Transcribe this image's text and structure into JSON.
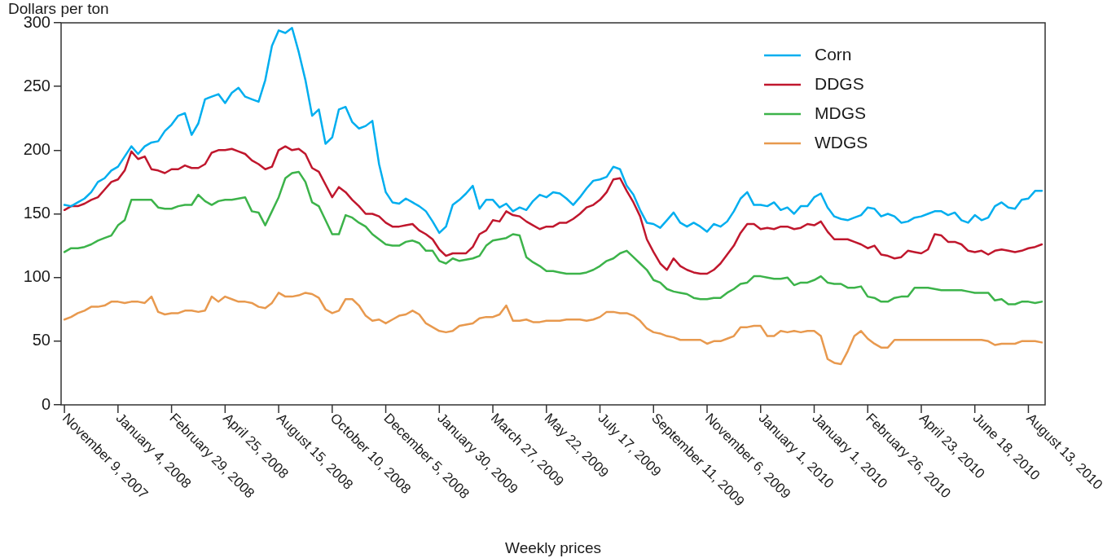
{
  "chart_data": {
    "type": "line",
    "ylabel": "Dollars per ton",
    "xlabel": "Weekly prices",
    "categories": [
      "November 9, 2007",
      null,
      null,
      null,
      null,
      null,
      null,
      null,
      "January 4, 2008",
      null,
      null,
      null,
      null,
      null,
      null,
      null,
      "February 29, 2008",
      null,
      null,
      null,
      null,
      null,
      null,
      null,
      "April 25, 2008",
      null,
      null,
      null,
      null,
      null,
      null,
      null,
      "August 15, 2008",
      null,
      null,
      null,
      null,
      null,
      null,
      null,
      "October 10, 2008",
      null,
      null,
      null,
      null,
      null,
      null,
      null,
      "December 5, 2008",
      null,
      null,
      null,
      null,
      null,
      null,
      null,
      "January 30, 2009",
      null,
      null,
      null,
      null,
      null,
      null,
      null,
      "March 27, 2009",
      null,
      null,
      null,
      null,
      null,
      null,
      null,
      "May 22, 2009",
      null,
      null,
      null,
      null,
      null,
      null,
      null,
      "July 17, 2009",
      null,
      null,
      null,
      null,
      null,
      null,
      null,
      "September 11, 2009",
      null,
      null,
      null,
      null,
      null,
      null,
      null,
      "November 6, 2009",
      null,
      null,
      null,
      null,
      null,
      null,
      null,
      "January 1, 2010",
      null,
      null,
      null,
      null,
      null,
      null,
      null,
      "January 1, 2010",
      null,
      null,
      null,
      null,
      null,
      null,
      null,
      "February 26, 2010",
      null,
      null,
      null,
      null,
      null,
      null,
      null,
      "April 23, 2010",
      null,
      null,
      null,
      null,
      null,
      null,
      null,
      "June 18, 2010",
      null,
      null,
      null,
      null,
      null,
      null,
      null,
      "August 13, 2010",
      null,
      null
    ],
    "series": [
      {
        "name": "Corn",
        "color": "#00aeef",
        "values": [
          157,
          156,
          159,
          162,
          167,
          175,
          178,
          184,
          187,
          195,
          203,
          197,
          203,
          206,
          207,
          215,
          220,
          227,
          229,
          212,
          221,
          240,
          242,
          244,
          237,
          245,
          249,
          242,
          240,
          238,
          255,
          282,
          294,
          292,
          296,
          277,
          255,
          227,
          232,
          205,
          210,
          232,
          234,
          222,
          217,
          219,
          223,
          189,
          167,
          159,
          158,
          162,
          159,
          156,
          152,
          144,
          135,
          140,
          157,
          161,
          166,
          172,
          154,
          161,
          161,
          155,
          158,
          152,
          155,
          153,
          160,
          165,
          163,
          167,
          166,
          162,
          157,
          163,
          170,
          176,
          177,
          179,
          187,
          185,
          172,
          165,
          153,
          143,
          142,
          139,
          145,
          151,
          143,
          140,
          143,
          140,
          136,
          142,
          140,
          144,
          152,
          162,
          167,
          157,
          157,
          156,
          159,
          153,
          155,
          150,
          156,
          156,
          163,
          166,
          155,
          148,
          146,
          145,
          147,
          149,
          155,
          154,
          148,
          150,
          148,
          143,
          144,
          147,
          148,
          150,
          152,
          152,
          149,
          151,
          145,
          143,
          149,
          145,
          147,
          156,
          159,
          155,
          154,
          161,
          162,
          168,
          168
        ]
      },
      {
        "name": "DDGS",
        "color": "#c0172d",
        "values": [
          153,
          156,
          156,
          158,
          161,
          163,
          169,
          175,
          177,
          184,
          199,
          193,
          195,
          185,
          184,
          182,
          185,
          185,
          188,
          186,
          186,
          189,
          198,
          200,
          200,
          201,
          199,
          197,
          192,
          189,
          185,
          187,
          200,
          203,
          200,
          201,
          197,
          186,
          183,
          173,
          163,
          171,
          167,
          161,
          156,
          150,
          150,
          148,
          143,
          140,
          140,
          141,
          142,
          137,
          134,
          130,
          122,
          117,
          119,
          119,
          119,
          124,
          134,
          137,
          145,
          144,
          152,
          149,
          148,
          144,
          141,
          138,
          140,
          140,
          143,
          143,
          146,
          150,
          155,
          157,
          161,
          167,
          177,
          178,
          168,
          159,
          148,
          130,
          120,
          111,
          106,
          115,
          109,
          106,
          104,
          103,
          103,
          106,
          111,
          118,
          125,
          135,
          142,
          142,
          138,
          139,
          138,
          140,
          140,
          138,
          139,
          142,
          141,
          144,
          136,
          130,
          130,
          130,
          128,
          126,
          123,
          125,
          118,
          117,
          115,
          116,
          121,
          120,
          119,
          122,
          134,
          133,
          128,
          128,
          126,
          121,
          120,
          121,
          118,
          121,
          122,
          121,
          120,
          121,
          123,
          124,
          126
        ]
      },
      {
        "name": "MDGS",
        "color": "#3cb34a",
        "values": [
          120,
          123,
          123,
          124,
          126,
          129,
          131,
          133,
          141,
          145,
          161,
          161,
          161,
          161,
          155,
          154,
          154,
          156,
          157,
          157,
          165,
          160,
          157,
          160,
          161,
          161,
          162,
          163,
          152,
          151,
          141,
          152,
          163,
          178,
          182,
          183,
          175,
          159,
          156,
          145,
          134,
          134,
          149,
          147,
          143,
          140,
          134,
          130,
          126,
          125,
          125,
          128,
          129,
          127,
          121,
          121,
          113,
          111,
          115,
          113,
          114,
          115,
          117,
          125,
          129,
          130,
          131,
          134,
          133,
          116,
          112,
          109,
          105,
          105,
          104,
          103,
          103,
          103,
          104,
          106,
          109,
          113,
          115,
          119,
          121,
          116,
          111,
          106,
          98,
          96,
          91,
          89,
          88,
          87,
          84,
          83,
          83,
          84,
          84,
          88,
          91,
          95,
          96,
          101,
          101,
          100,
          99,
          99,
          100,
          94,
          96,
          96,
          98,
          101,
          96,
          95,
          95,
          92,
          92,
          93,
          85,
          84,
          81,
          81,
          84,
          85,
          85,
          92,
          92,
          92,
          91,
          90,
          90,
          90,
          90,
          89,
          88,
          88,
          88,
          82,
          83,
          79,
          79,
          81,
          81,
          80,
          81
        ]
      },
      {
        "name": "WDGS",
        "color": "#e8994e",
        "values": [
          67,
          69,
          72,
          74,
          77,
          77,
          78,
          81,
          81,
          80,
          81,
          81,
          80,
          85,
          73,
          71,
          72,
          72,
          74,
          74,
          73,
          74,
          85,
          81,
          85,
          83,
          81,
          81,
          80,
          77,
          76,
          80,
          88,
          85,
          85,
          86,
          88,
          87,
          84,
          75,
          72,
          74,
          83,
          83,
          78,
          70,
          66,
          67,
          64,
          67,
          70,
          71,
          74,
          71,
          64,
          61,
          58,
          57,
          58,
          62,
          63,
          64,
          68,
          69,
          69,
          71,
          78,
          66,
          66,
          67,
          65,
          65,
          66,
          66,
          66,
          67,
          67,
          67,
          66,
          67,
          69,
          73,
          73,
          72,
          72,
          70,
          66,
          60,
          57,
          56,
          54,
          53,
          51,
          51,
          51,
          51,
          48,
          50,
          50,
          52,
          54,
          61,
          61,
          62,
          62,
          54,
          54,
          58,
          57,
          58,
          57,
          58,
          58,
          54,
          36,
          33,
          32,
          42,
          54,
          58,
          52,
          48,
          45,
          45,
          51,
          51,
          51,
          51,
          51,
          51,
          51,
          51,
          51,
          51,
          51,
          51,
          51,
          51,
          50,
          47,
          48,
          48,
          48,
          50,
          50,
          50,
          49
        ]
      }
    ],
    "ylim": [
      0,
      300
    ],
    "yticks": [
      0,
      50,
      100,
      150,
      200,
      250,
      300
    ],
    "legend": "top right",
    "marker": "none",
    "line_style": "solid"
  }
}
